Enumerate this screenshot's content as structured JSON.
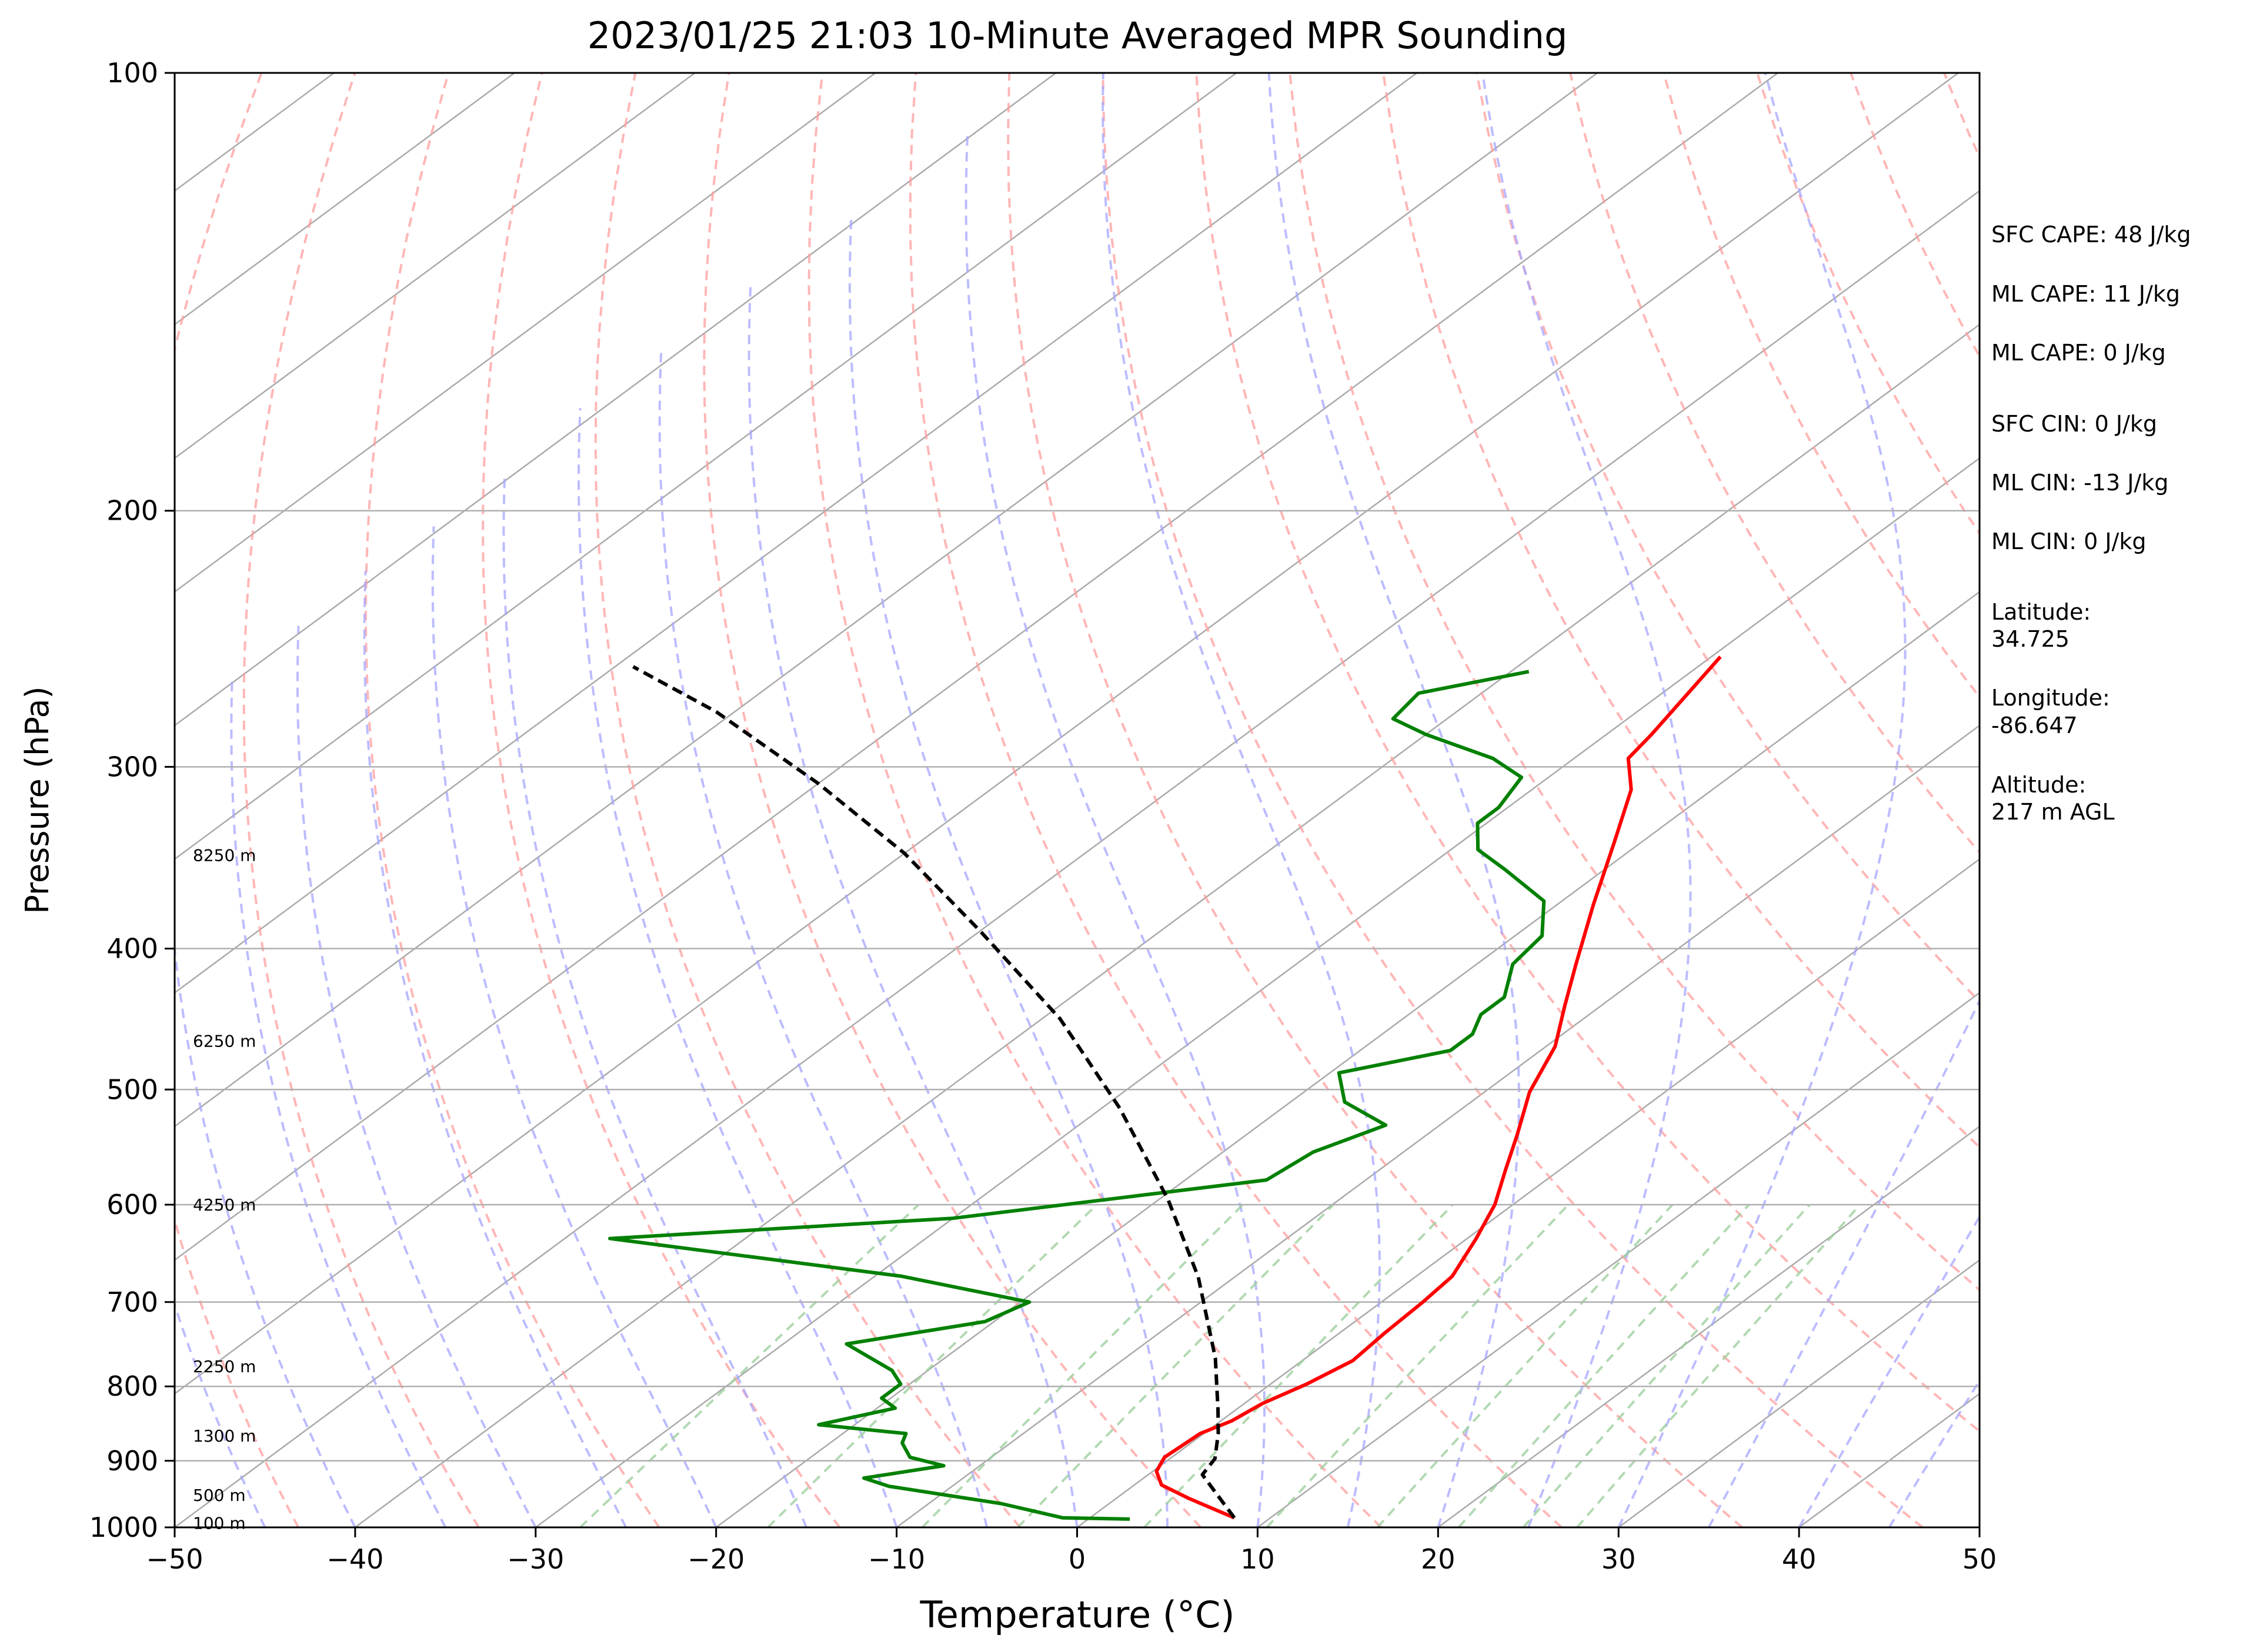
{
  "chart_data": {
    "type": "line",
    "title": "2023/01/25 21:03 10-Minute Averaged MPR Sounding",
    "xlabel": "Temperature (°C)",
    "ylabel": "Pressure (hPa)",
    "xlim": [
      -50,
      50
    ],
    "ylim": [
      1000,
      100
    ],
    "yscale": "log",
    "skew": "skew-T",
    "grid": true,
    "x_ticks": [
      -50,
      -40,
      -30,
      -20,
      -10,
      0,
      10,
      20,
      30,
      40,
      50
    ],
    "x_tick_labels": [
      "−50",
      "−40",
      "−30",
      "−20",
      "−10",
      "0",
      "10",
      "20",
      "30",
      "40",
      "50"
    ],
    "y_ticks": [
      1000,
      900,
      800,
      700,
      600,
      500,
      400,
      300,
      200,
      100
    ],
    "y_tick_labels": [
      "1000",
      "900",
      "800",
      "700",
      "600",
      "500",
      "400",
      "300",
      "200",
      "100"
    ],
    "height_labels": [
      {
        "p": 993,
        "label": "100 m"
      },
      {
        "p": 950,
        "label": "500 m"
      },
      {
        "p": 865,
        "label": "1300 m"
      },
      {
        "p": 775,
        "label": "2250 m"
      },
      {
        "p": 600,
        "label": "4250 m"
      },
      {
        "p": 463,
        "label": "6250 m"
      },
      {
        "p": 345,
        "label": "8250 m"
      }
    ],
    "annotations": [
      "SFC CAPE: 48 J/kg",
      "ML CAPE: 11 J/kg",
      "ML CAPE: 0 J/kg",
      "SFC CIN: 0 J/kg",
      "ML CIN: -13 J/kg",
      "ML CIN: 0 J/kg",
      "Latitude:",
      "34.725",
      "Longitude:",
      "-86.647",
      "Altitude:",
      "217 m AGL"
    ],
    "series": [
      {
        "color": "#ff0000",
        "style": "solid",
        "points": [
          [
            8.0,
            985
          ],
          [
            4.0,
            955
          ],
          [
            1.5,
            935
          ],
          [
            0.2,
            915
          ],
          [
            -0.4,
            895
          ],
          [
            -0.2,
            862
          ],
          [
            0.6,
            845
          ],
          [
            1.0,
            822
          ],
          [
            2.0,
            797
          ],
          [
            2.8,
            768
          ],
          [
            2.5,
            735
          ],
          [
            2.3,
            700
          ],
          [
            2.0,
            672
          ],
          [
            0.5,
            633
          ],
          [
            -1.0,
            600
          ],
          [
            -3.0,
            568
          ],
          [
            -5.0,
            537
          ],
          [
            -7.5,
            502
          ],
          [
            -9.5,
            467
          ],
          [
            -12.0,
            438
          ],
          [
            -14.5,
            410
          ],
          [
            -18.0,
            373
          ],
          [
            -21.5,
            338
          ],
          [
            -24.5,
            311
          ],
          [
            -27.0,
            296
          ],
          [
            -27.5,
            285
          ],
          [
            -28.5,
            268
          ],
          [
            -29.5,
            252
          ]
        ]
      },
      {
        "color": "#008000",
        "style": "solid",
        "points": [
          [
            2.3,
            987
          ],
          [
            -1.5,
            985
          ],
          [
            -6.0,
            963
          ],
          [
            -13.5,
            937
          ],
          [
            -15.5,
            925
          ],
          [
            -12.0,
            907
          ],
          [
            -14.5,
            895
          ],
          [
            -16.0,
            875
          ],
          [
            -16.5,
            862
          ],
          [
            -22.0,
            850
          ],
          [
            -19.0,
            828
          ],
          [
            -20.5,
            815
          ],
          [
            -20.5,
            797
          ],
          [
            -22.0,
            780
          ],
          [
            -26.5,
            748
          ],
          [
            -20.5,
            722
          ],
          [
            -19.5,
            700
          ],
          [
            -28.5,
            672
          ],
          [
            -47.5,
            633
          ],
          [
            -30.0,
            613
          ],
          [
            -15.5,
            577
          ],
          [
            -15.0,
            552
          ],
          [
            -13.0,
            529
          ],
          [
            -17.0,
            510
          ],
          [
            -19.5,
            487
          ],
          [
            -15.0,
            470
          ],
          [
            -15.0,
            458
          ],
          [
            -16.0,
            444
          ],
          [
            -16.0,
            432
          ],
          [
            -18.0,
            410
          ],
          [
            -18.5,
            392
          ],
          [
            -21.0,
            371
          ],
          [
            -25.5,
            353
          ],
          [
            -28.5,
            342
          ],
          [
            -30.5,
            328
          ],
          [
            -30.5,
            320
          ],
          [
            -31.5,
            305
          ],
          [
            -34.5,
            296
          ],
          [
            -40.0,
            285
          ],
          [
            -43.0,
            278
          ],
          [
            -43.5,
            267
          ],
          [
            -39.0,
            258
          ]
        ]
      },
      {
        "color": "#000000",
        "style": "dashed",
        "points": [
          [
            8.0,
            985
          ],
          [
            3.0,
            920
          ],
          [
            2.5,
            897
          ],
          [
            0.8,
            862
          ],
          [
            -1.0,
            830
          ],
          [
            -5.0,
            765
          ],
          [
            -12.0,
            673
          ],
          [
            -19.5,
            595
          ],
          [
            -29.0,
            515
          ],
          [
            -39.0,
            447
          ],
          [
            -50.0,
            389
          ],
          [
            -60.0,
            344
          ],
          [
            -70.0,
            308
          ],
          [
            -81.0,
            275
          ],
          [
            -89.0,
            256
          ]
        ]
      }
    ]
  }
}
